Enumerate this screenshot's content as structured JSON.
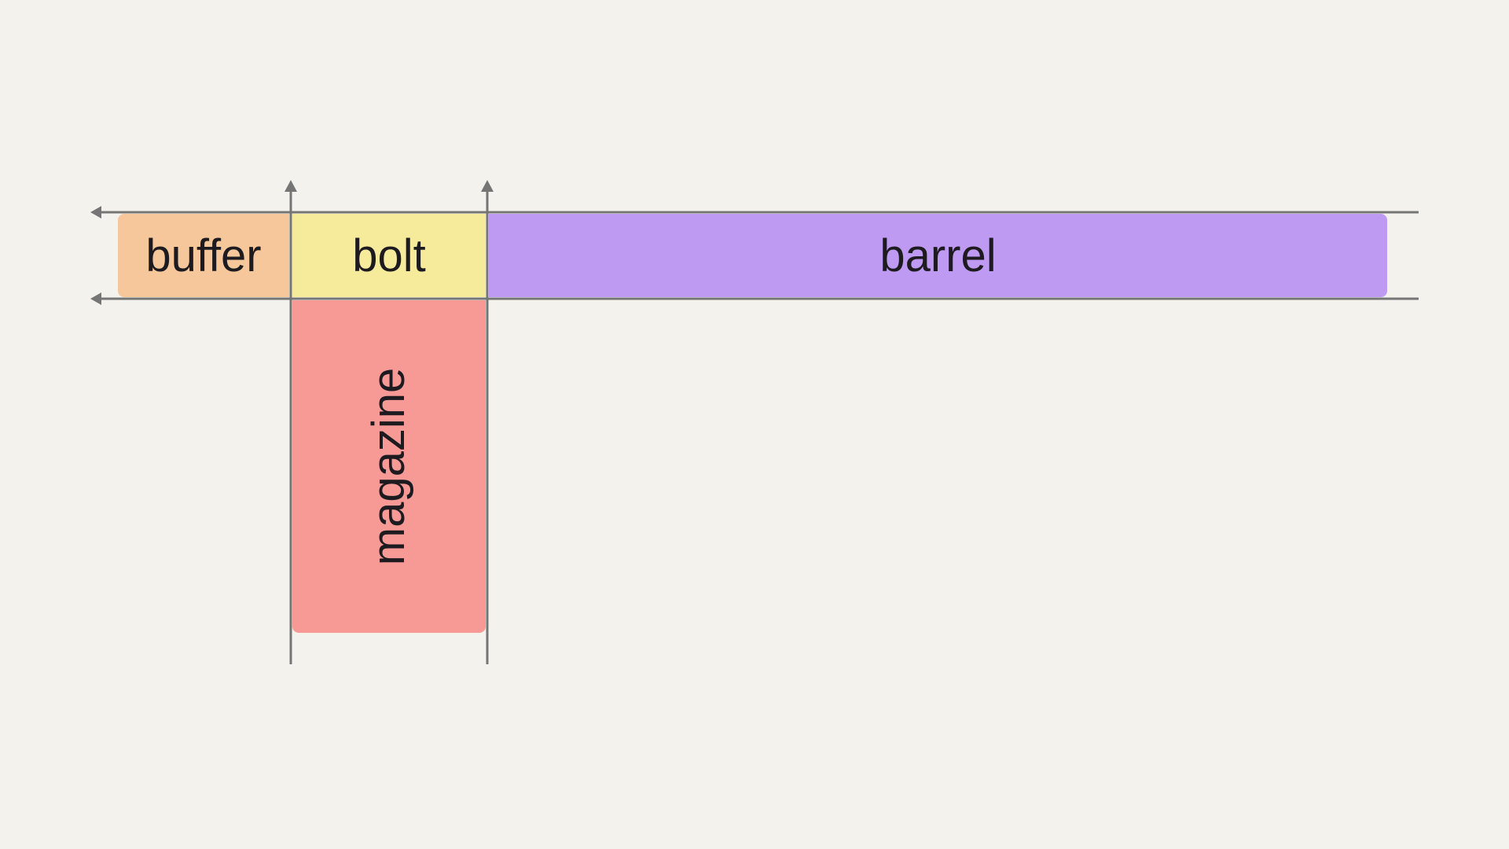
{
  "diagram": {
    "parts": [
      {
        "label": "buffer",
        "color": "#f6c79a"
      },
      {
        "label": "bolt",
        "color": "#f6eb9a"
      },
      {
        "label": "barrel",
        "color": "#bf9af2"
      },
      {
        "label": "magazine",
        "color": "#f79a96"
      }
    ],
    "line_color": "#757575",
    "background": "#f4f2ed"
  }
}
